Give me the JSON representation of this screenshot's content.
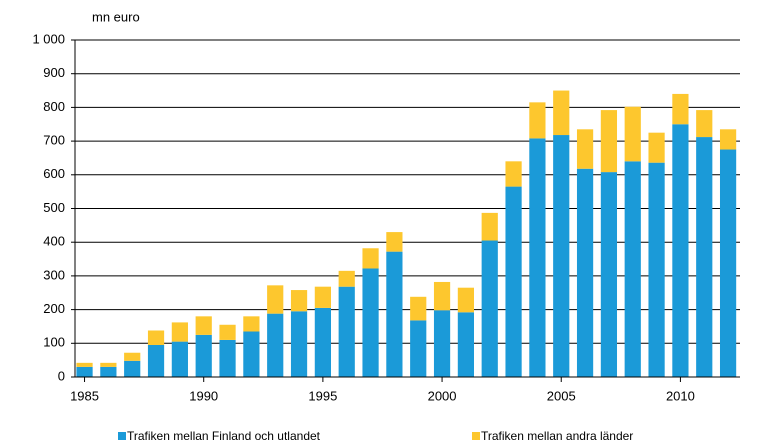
{
  "chart_data": {
    "type": "stacked_bar",
    "y_unit_label": "mn euro",
    "x": [
      1985,
      1986,
      1987,
      1988,
      1989,
      1990,
      1991,
      1992,
      1993,
      1994,
      1995,
      1996,
      1997,
      1998,
      1999,
      2000,
      2001,
      2002,
      2003,
      2004,
      2005,
      2006,
      2007,
      2008,
      2009,
      2010,
      2011,
      2012
    ],
    "xlim": [
      1984.6,
      2012.5
    ],
    "xticks": [
      1985,
      1990,
      1995,
      2000,
      2005,
      2010
    ],
    "ylim": [
      0,
      1000
    ],
    "yticks": [
      0,
      100,
      200,
      300,
      400,
      500,
      600,
      700,
      800,
      900,
      {
        "value": 1000,
        "label": "1 000"
      }
    ],
    "grid": true,
    "legend": "bottom",
    "series": [
      {
        "name": "Trafiken mellan Finland och utlandet",
        "color": "#1b9ad8",
        "values": [
          30,
          30,
          48,
          95,
          105,
          125,
          110,
          135,
          188,
          195,
          205,
          268,
          322,
          372,
          168,
          198,
          192,
          405,
          565,
          708,
          718,
          618,
          608,
          640,
          636,
          750,
          712,
          675
        ]
      },
      {
        "name": "Trafiken mellan andra länder",
        "color": "#fdc72e",
        "values": [
          12,
          12,
          24,
          43,
          57,
          55,
          45,
          45,
          84,
          63,
          63,
          47,
          60,
          58,
          70,
          84,
          73,
          82,
          75,
          107,
          132,
          117,
          184,
          162,
          89,
          90,
          80,
          60
        ]
      }
    ]
  }
}
